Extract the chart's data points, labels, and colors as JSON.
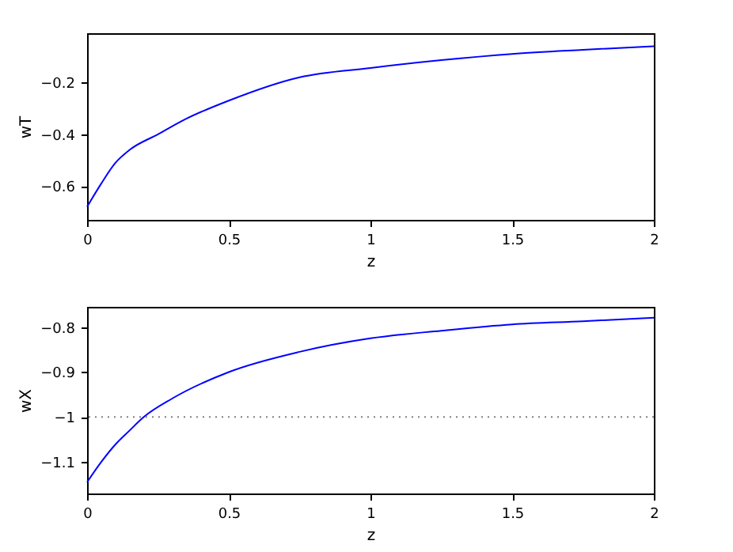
{
  "chart_data": [
    {
      "type": "line",
      "xlabel": "z",
      "ylabel": "wT",
      "xlim": [
        0,
        2
      ],
      "xticks": [
        0,
        0.5,
        1,
        1.5,
        2
      ],
      "ylim": [
        -0.73,
        -0.01
      ],
      "yticks": [
        -0.6,
        -0.4,
        -0.2
      ],
      "grid": false,
      "line_style": "solid",
      "series": [
        {
          "color": "#0000ff",
          "x": [
            0,
            0.05,
            0.1,
            0.15,
            0.25,
            0.35,
            0.5,
            0.75,
            1,
            1.25,
            1.5,
            1.75,
            2
          ],
          "values": [
            -0.68,
            -0.59,
            -0.51,
            -0.46,
            -0.4,
            -0.34,
            -0.27,
            -0.18,
            -0.144,
            -0.114,
            -0.09,
            -0.074,
            -0.06
          ]
        }
      ]
    },
    {
      "type": "line",
      "xlabel": "z",
      "ylabel": "wX",
      "xlim": [
        0,
        2
      ],
      "xticks": [
        0,
        0.5,
        1,
        1.5,
        2
      ],
      "ylim": [
        -1.17,
        -0.755
      ],
      "yticks": [
        -1.1,
        -1,
        -0.9,
        -0.8
      ],
      "grid": false,
      "line_style": "solid",
      "ref_lines": [
        {
          "axis": "y",
          "value": -1,
          "color": "#808080",
          "line_style": "dotted"
        }
      ],
      "series": [
        {
          "color": "#0000ff",
          "x": [
            0,
            0.05,
            0.1,
            0.15,
            0.2,
            0.3,
            0.5,
            0.75,
            1,
            1.25,
            1.5,
            1.75,
            2
          ],
          "values": [
            -1.145,
            -1.1,
            -1.061,
            -1.03,
            -1.0,
            -0.959,
            -0.9,
            -0.855,
            -0.825,
            -0.808,
            -0.794,
            -0.787,
            -0.779
          ]
        }
      ]
    }
  ]
}
